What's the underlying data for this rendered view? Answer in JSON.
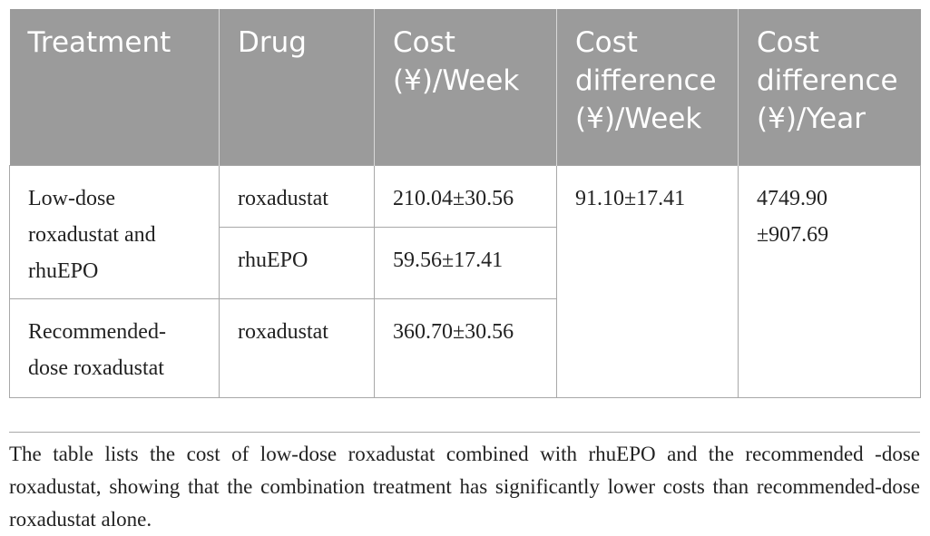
{
  "table": {
    "headers": {
      "treatment": "Treatment",
      "drug": "Drug",
      "cost_week": "Cost (¥)/Week",
      "diff_week": "Cost differ­ence (¥)/Week",
      "diff_year": "Cost differ­ence (¥)/Year"
    },
    "rows": [
      {
        "treatment": "Low-dose roxadustat and rhuEPO",
        "drugs": [
          {
            "drug": "roxadustat",
            "cost_week": "210.04±30.56"
          },
          {
            "drug": "rhuEPO",
            "cost_week": "59.56±17.41"
          }
        ]
      },
      {
        "treatment": "Recommended-dose roxadustat",
        "drugs": [
          {
            "drug": "roxadustat",
            "cost_week": "360.70±30.56"
          }
        ]
      }
    ],
    "diff_week": "91.10±17.41",
    "diff_year": "4749.90 ±907.69"
  },
  "caption": "The table lists the cost of low-dose roxadustat combined with rhuEPO and the recommended -dose roxadustat, showing that the combination treatment has significantly lower costs than recommended-dose roxadustat alone."
}
